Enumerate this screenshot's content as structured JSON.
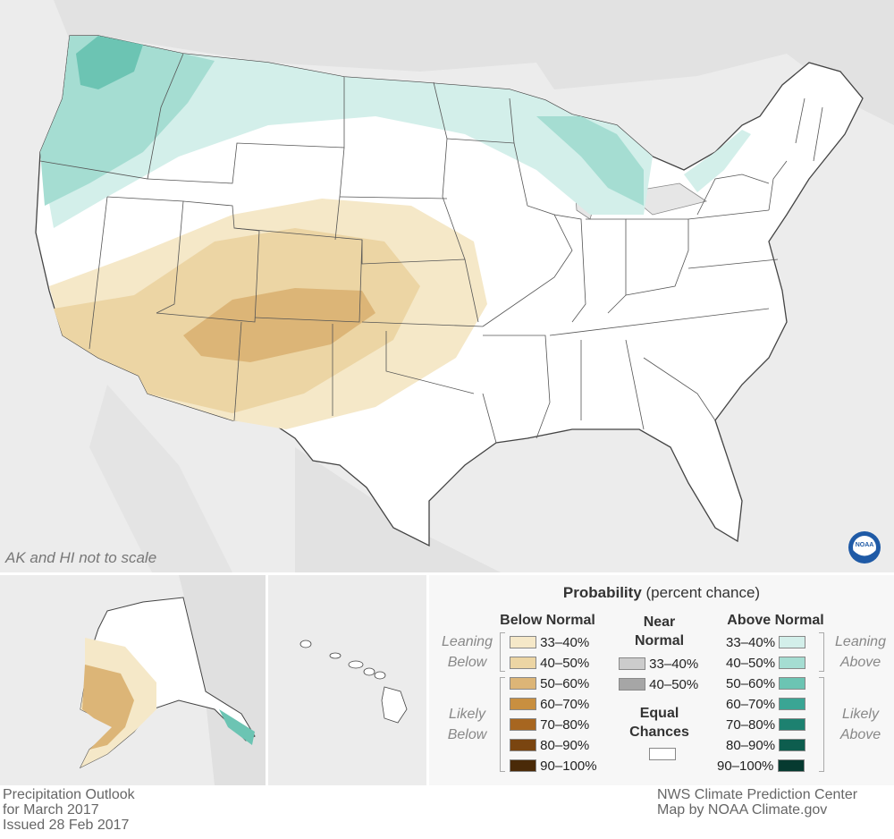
{
  "map": {
    "note": "AK and HI not to scale",
    "logo": "noaa-logo",
    "logo_text": "NOAA"
  },
  "legend": {
    "title_bold": "Probability",
    "title_rest": " (percent chance)",
    "below_heading": "Below Normal",
    "near_heading_1": "Near",
    "near_heading_2": "Normal",
    "above_heading": "Above Normal",
    "leaning_below_1": "Leaning",
    "leaning_below_2": "Below",
    "likely_below_1": "Likely",
    "likely_below_2": "Below",
    "leaning_above_1": "Leaning",
    "leaning_above_2": "Above",
    "likely_above_1": "Likely",
    "likely_above_2": "Above",
    "equal_1": "Equal",
    "equal_2": "Chances",
    "below": [
      {
        "label": "33–40%",
        "color": "#f5e8c8"
      },
      {
        "label": "40–50%",
        "color": "#ecd5a4"
      },
      {
        "label": "50–60%",
        "color": "#dcb577"
      },
      {
        "label": "60–70%",
        "color": "#c88f40"
      },
      {
        "label": "70–80%",
        "color": "#a76620"
      },
      {
        "label": "80–90%",
        "color": "#7a4510"
      },
      {
        "label": "90–100%",
        "color": "#4a2a08"
      }
    ],
    "near": [
      {
        "label": "33–40%",
        "color": "#cccccc"
      },
      {
        "label": "40–50%",
        "color": "#a6a6a6"
      }
    ],
    "above": [
      {
        "label": "33–40%",
        "color": "#d3efea"
      },
      {
        "label": "40–50%",
        "color": "#a5ddd2"
      },
      {
        "label": "50–60%",
        "color": "#6cc4b3"
      },
      {
        "label": "60–70%",
        "color": "#3aa594"
      },
      {
        "label": "70–80%",
        "color": "#1d8170"
      },
      {
        "label": "80–90%",
        "color": "#0d5d4e"
      },
      {
        "label": "90–100%",
        "color": "#063a30"
      }
    ],
    "equal_color": "#ffffff"
  },
  "footer": {
    "left_line1": "Precipitation Outlook",
    "left_line2": "for March 2017",
    "left_line3": "Issued 28 Feb 2017",
    "right_line1": "NWS Climate Prediction Center",
    "right_line2": "Map by NOAA Climate.gov"
  }
}
